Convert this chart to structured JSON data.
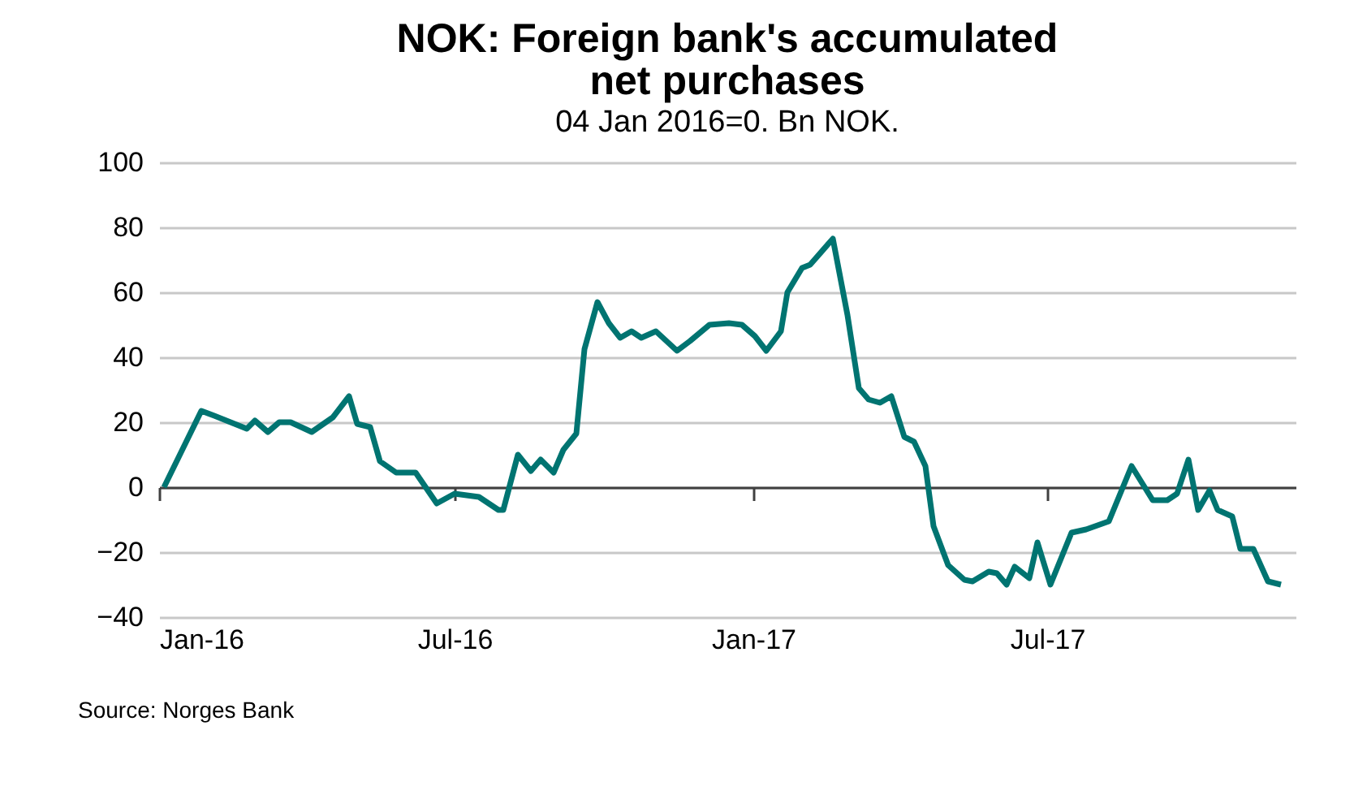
{
  "chart_data": {
    "type": "line",
    "title": "NOK:  Foreign bank's accumulated\nnet purchases",
    "subtitle": "04 Jan 2016=0. Bn NOK.",
    "annotations": [
      "Source:  Norges Bank"
    ],
    "x": [
      "2016-01-04",
      "2016-01-27",
      "2016-02-04",
      "2016-02-14",
      "2016-02-24",
      "2016-02-29",
      "2016-03-08",
      "2016-03-15",
      "2016-03-22",
      "2016-04-04",
      "2016-04-17",
      "2016-04-27",
      "2016-05-02",
      "2016-05-10",
      "2016-05-16",
      "2016-05-26",
      "2016-06-07",
      "2016-06-20",
      "2016-07-01",
      "2016-07-16",
      "2016-07-28",
      "2016-07-31",
      "2016-08-09",
      "2016-08-17",
      "2016-08-23",
      "2016-08-31",
      "2016-09-06",
      "2016-09-14",
      "2016-09-19",
      "2016-09-27",
      "2016-10-04",
      "2016-10-11",
      "2016-10-18",
      "2016-10-24",
      "2016-11-02",
      "2016-11-15",
      "2016-11-23",
      "2016-12-05",
      "2016-12-17",
      "2016-12-25",
      "2017-01-02",
      "2017-01-09",
      "2017-01-18",
      "2017-01-22",
      "2017-01-31",
      "2017-02-05",
      "2017-02-19",
      "2017-02-28",
      "2017-03-07",
      "2017-03-13",
      "2017-03-20",
      "2017-03-27",
      "2017-04-04",
      "2017-04-10",
      "2017-04-17",
      "2017-04-22",
      "2017-05-01",
      "2017-05-11",
      "2017-05-16",
      "2017-05-26",
      "2017-05-31",
      "2017-06-06",
      "2017-06-11",
      "2017-06-20",
      "2017-06-25",
      "2017-07-03",
      "2017-07-16",
      "2017-07-25",
      "2017-08-08",
      "2017-08-22",
      "2017-09-04",
      "2017-09-13",
      "2017-09-19",
      "2017-09-26",
      "2017-10-02",
      "2017-10-09",
      "2017-10-14",
      "2017-10-23",
      "2017-10-28",
      "2017-11-05",
      "2017-11-14",
      "2017-11-22"
    ],
    "series": [
      {
        "color": "#007471",
        "values": [
          0,
          23.5,
          22,
          20,
          18,
          20.5,
          17,
          20,
          20,
          17,
          21.5,
          28,
          19.5,
          18.5,
          8,
          4.5,
          4.5,
          -5,
          -2,
          -3,
          -7,
          -7,
          10,
          5,
          8.5,
          4.5,
          11.5,
          16.5,
          42.5,
          57,
          50.5,
          46,
          48,
          46,
          48,
          42,
          45,
          50,
          50.5,
          50,
          46.5,
          42,
          48,
          60,
          67.5,
          68.5,
          76.5,
          53,
          30.5,
          27,
          26,
          28,
          15.5,
          14,
          6.5,
          -12,
          -24,
          -28.5,
          -29,
          -26,
          -26.5,
          -30,
          -24.5,
          -28,
          -17,
          -30,
          -14,
          -13,
          -10.5,
          6.5,
          -4,
          -4,
          -2,
          8.5,
          -7,
          -1,
          -7,
          -9,
          -19,
          -19,
          -29,
          -30
        ]
      }
    ],
    "xlim": [
      "2016-01-01",
      "2017-12-01"
    ],
    "xticks": [
      {
        "value": "2016-01-01",
        "label": "Jan-16"
      },
      {
        "value": "2016-07-01",
        "label": "Jul-16"
      },
      {
        "value": "2017-01-01",
        "label": "Jan-17"
      },
      {
        "value": "2017-07-01",
        "label": "Jul-17"
      }
    ],
    "ylim": [
      -40,
      100
    ],
    "yticks": [
      -40,
      -20,
      0,
      20,
      40,
      60,
      80,
      100
    ],
    "grid": "y",
    "marker": "none",
    "line_style": "solid"
  }
}
